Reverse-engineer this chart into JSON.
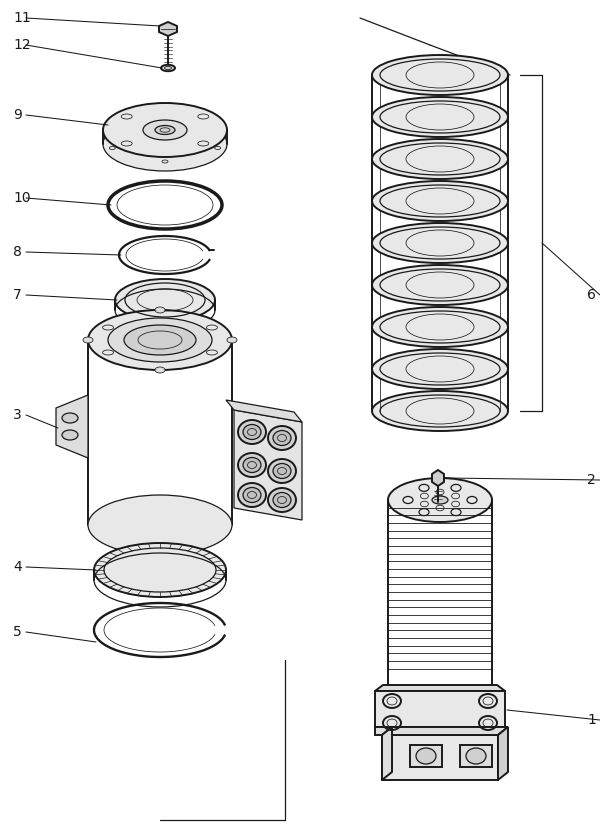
{
  "bg_color": "#ffffff",
  "lc": "#1a1a1a",
  "fig_w": 6.0,
  "fig_h": 8.4,
  "dpi": 100,
  "lw_main": 1.4,
  "lw_med": 0.9,
  "lw_thin": 0.55,
  "label_fs": 10
}
